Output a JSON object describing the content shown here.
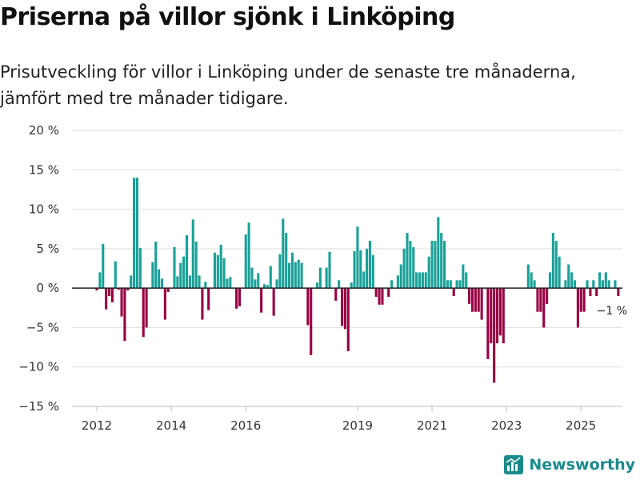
{
  "title": "Priserna på villor sjönk i Linköping",
  "subtitle": "Prisutveckling för villor i Linköping under de senaste tre månaderna, jämfört med tre månader tidigare.",
  "brand": "Newsworthy",
  "colors": {
    "positive": "#18a198",
    "negative": "#980042",
    "grid": "#dddddd",
    "baseline": "#222222",
    "brand": "#1a8a8c"
  },
  "chart_data": {
    "type": "bar",
    "title": "Priserna på villor sjönk i Linköping",
    "xlabel": "",
    "ylabel": "",
    "ylim": [
      -15,
      20
    ],
    "yticks": [
      -15,
      -10,
      -5,
      0,
      5,
      10,
      15,
      20
    ],
    "yticklabels": [
      "−15 %",
      "−10 %",
      "−5 %",
      "0 %",
      "5 %",
      "10 %",
      "15 %",
      "20 %"
    ],
    "xticks": [
      {
        "label": "2012",
        "index": 0
      },
      {
        "label": "2014",
        "index": 24
      },
      {
        "label": "2016",
        "index": 48
      },
      {
        "label": "2019",
        "index": 84
      },
      {
        "label": "2021",
        "index": 108
      },
      {
        "label": "2023",
        "index": 132
      },
      {
        "label": "2025",
        "index": 156
      }
    ],
    "start": "2012-01",
    "frequency": "monthly",
    "values": [
      -0.3,
      2,
      5.6,
      -2.7,
      -1,
      -1.8,
      3.4,
      -0.2,
      -3.6,
      -6.7,
      -0.3,
      1.6,
      14,
      14,
      5.1,
      -6.2,
      -5,
      0,
      3.3,
      5.9,
      2.4,
      1.2,
      -4,
      -0.5,
      0,
      5.2,
      1.5,
      3.2,
      4,
      6.7,
      1.6,
      8.7,
      5.9,
      1.6,
      -4,
      0.8,
      -2.8,
      0,
      4.5,
      4.2,
      5.5,
      3.8,
      1.2,
      1.4,
      0,
      -2.6,
      -2.3,
      0,
      6.8,
      8.3,
      2.6,
      1.1,
      1.9,
      -3.1,
      0.5,
      0.4,
      2.8,
      -3.5,
      1.1,
      4.3,
      8.8,
      7,
      3.2,
      4.5,
      3.3,
      3.6,
      3.2,
      0,
      -4.7,
      -8.5,
      0,
      0.7,
      2.6,
      0,
      2.6,
      4.6,
      0,
      -1.6,
      1,
      -4.8,
      -5.2,
      -8,
      0.7,
      4.7,
      7.8,
      4.8,
      2.1,
      5,
      6,
      4.2,
      -1.1,
      -2.1,
      -2.1,
      0,
      -1.1,
      1,
      0,
      1.6,
      3,
      5,
      7,
      6,
      5.2,
      2,
      2,
      2,
      2,
      4,
      6,
      6,
      9,
      7,
      6,
      1,
      1,
      -1,
      1,
      1,
      3,
      2,
      -2,
      -3,
      -3,
      -3,
      -4,
      0,
      -9,
      -7,
      -12,
      -7,
      -6,
      -7,
      0,
      0,
      0,
      0,
      0,
      0,
      0,
      3,
      2,
      1,
      -3,
      -3,
      -5,
      -2,
      2,
      7,
      6,
      4,
      0,
      1,
      3,
      2,
      1,
      -5,
      -3,
      -3,
      1,
      -1,
      1,
      -1,
      2,
      1,
      2,
      1,
      0,
      1,
      -1
    ],
    "annotation": {
      "label": "−1 %",
      "value": -1
    }
  }
}
